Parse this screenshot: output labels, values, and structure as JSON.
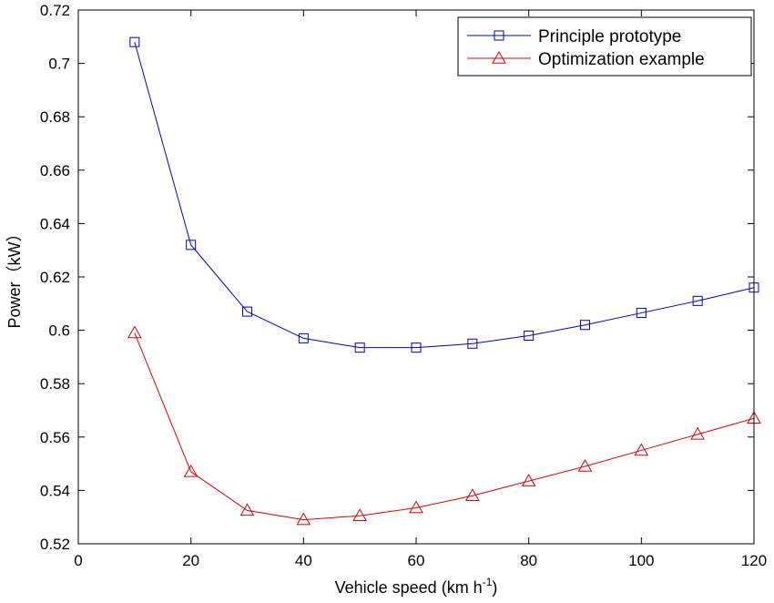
{
  "chart_data": {
    "type": "line",
    "title": "",
    "xlabel": "Vehicle speed (km h",
    "xlabel_sup": "-1",
    "xlabel_end": ")",
    "ylabel": "Power（kW）",
    "xlim": [
      0,
      120
    ],
    "ylim": [
      0.52,
      0.72
    ],
    "xticks": [
      "0",
      "20",
      "40",
      "60",
      "80",
      "100",
      "120"
    ],
    "yticks": [
      "0.52",
      "0.54",
      "0.56",
      "0.58",
      "0.6",
      "0.62",
      "0.64",
      "0.66",
      "0.68",
      "0.7",
      "0.72"
    ],
    "xtick_values": [
      0,
      20,
      40,
      60,
      80,
      100,
      120
    ],
    "ytick_values": [
      0.52,
      0.54,
      0.56,
      0.58,
      0.6,
      0.62,
      0.64,
      0.66,
      0.68,
      0.7,
      0.72
    ],
    "grid": false,
    "legend_position": "top-right",
    "x": [
      10,
      20,
      30,
      40,
      50,
      60,
      70,
      80,
      90,
      100,
      110,
      120
    ],
    "series": [
      {
        "name": "Principle prototype",
        "color": "#0000cc",
        "marker": "square",
        "values": [
          0.708,
          0.632,
          0.607,
          0.597,
          0.5935,
          0.5935,
          0.595,
          0.598,
          0.602,
          0.6065,
          0.611,
          0.616
        ]
      },
      {
        "name": "Optimization example",
        "color": "#e00000",
        "marker": "triangle",
        "values": [
          0.599,
          0.547,
          0.5325,
          0.529,
          0.5305,
          0.5335,
          0.538,
          0.5435,
          0.549,
          0.555,
          0.561,
          0.567
        ]
      }
    ]
  }
}
